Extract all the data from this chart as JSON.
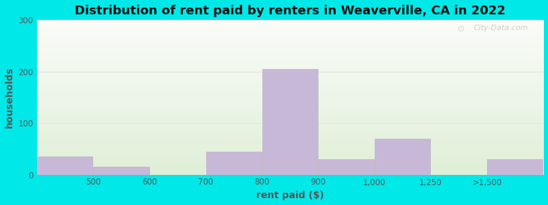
{
  "title": "Distribution of rent paid by renters in Weaverville, CA in 2022",
  "xlabel": "rent paid ($)",
  "ylabel": "households",
  "bar_heights": [
    35,
    15,
    0,
    45,
    205,
    30,
    70,
    0,
    30
  ],
  "bar_color": "#c8b8d8",
  "bar_edgecolor": "#b5a5c5",
  "tick_labels": [
    "500",
    "600",
    "700",
    "800",
    "900",
    "1,000",
    "1,250",
    ">1,500"
  ],
  "tick_positions": [
    1,
    2,
    3,
    4,
    5,
    6,
    7,
    8
  ],
  "ylim": [
    0,
    300
  ],
  "yticks": [
    0,
    100,
    200,
    300
  ],
  "bg_top_color": "#ffffff",
  "bg_bottom_color": "#e8f2e0",
  "outer_color": "#00e8e8",
  "title_fontsize": 13,
  "axis_label_fontsize": 10,
  "watermark": "City-Data.com",
  "grid_color": "#dddddd",
  "text_color": "#555555",
  "lefts": [
    0,
    1,
    2,
    3,
    4,
    5,
    6,
    7,
    8
  ],
  "widths": [
    1,
    1,
    1,
    1,
    1,
    1,
    1,
    1,
    1
  ]
}
